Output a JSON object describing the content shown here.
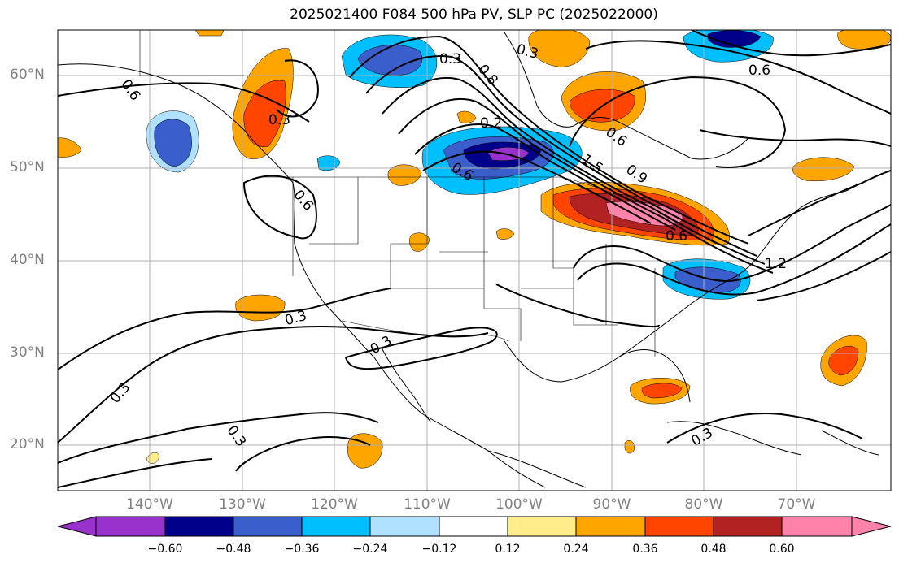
{
  "title": "2025021400 F084 500 hPa PV, SLP PC (2025022000)",
  "lat_labels": [
    "60°N",
    "50°N",
    "40°N",
    "30°N",
    "20°N"
  ],
  "lon_labels": [
    "140°W",
    "130°W",
    "120°W",
    "110°W",
    "100°W",
    "90°W",
    "80°W",
    "70°W"
  ],
  "colorbar": {
    "ticks": [
      "−0.60",
      "−0.48",
      "−0.36",
      "−0.24",
      "−0.12",
      "0.12",
      "0.24",
      "0.36",
      "0.48",
      "0.60"
    ],
    "colors": [
      "#9932cc",
      "#00008b",
      "#3a5fcd",
      "#00bfff",
      "#b0e2ff",
      "#ffffff",
      "#ffec8b",
      "#ffa500",
      "#ff4500",
      "#b22222",
      "#ff82ab"
    ]
  },
  "contour_labels": [
    "0.6",
    "0.3",
    "0.6",
    "0.6",
    "0.6",
    "0.3",
    "0.8",
    "0.2",
    "0.6",
    "0.3",
    "1.5",
    "0.6",
    "0.9",
    "1.2",
    "0.3",
    "0.3",
    "0.3",
    "0.3",
    "0.3"
  ]
}
